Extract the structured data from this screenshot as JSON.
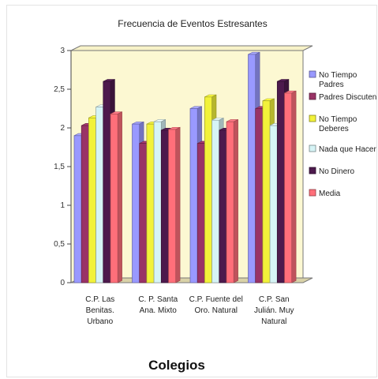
{
  "chart_data": {
    "type": "bar",
    "title": "Frecuencia de Eventos Estresantes",
    "xlabel": "Colegios",
    "ylabel": "",
    "ylim": [
      0,
      3
    ],
    "yticks": [
      "0",
      "0,5",
      "1",
      "1,5",
      "2",
      "2,5",
      "3"
    ],
    "legend_position": "right",
    "grid": false,
    "categories": [
      [
        "C.P. Las",
        "Benitas.",
        "Urbano"
      ],
      [
        "C. P. Santa",
        "Ana. Mixto"
      ],
      [
        "C.P. Fuente del",
        "Oro. Natural"
      ],
      [
        "C.P. San",
        "Julián. Muy",
        "Natural"
      ]
    ],
    "series": [
      {
        "name": "No Tiempo Padres",
        "legend_lines": [
          "No Tiempo",
          "Padres"
        ],
        "color": "#9999ff",
        "values": [
          1.9,
          2.05,
          2.25,
          2.95
        ]
      },
      {
        "name": "Padres Discuten",
        "legend_lines": [
          "Padres Discuten"
        ],
        "color": "#993366",
        "values": [
          2.03,
          1.8,
          1.8,
          2.25
        ]
      },
      {
        "name": "No Tiempo Deberes",
        "legend_lines": [
          "No Tiempo",
          "Deberes"
        ],
        "color": "#f2f23a",
        "values": [
          2.13,
          2.05,
          2.4,
          2.35
        ]
      },
      {
        "name": "Nada que Hacer",
        "legend_lines": [
          "Nada que Hacer"
        ],
        "color": "#d6f4f6",
        "values": [
          2.27,
          2.08,
          2.1,
          2.03
        ]
      },
      {
        "name": "No Dinero",
        "legend_lines": [
          "No Dinero"
        ],
        "color": "#4d1a4d",
        "values": [
          2.6,
          1.97,
          1.97,
          2.6
        ]
      },
      {
        "name": "Media",
        "legend_lines": [
          "Media"
        ],
        "color": "#ff6f7a",
        "values": [
          2.18,
          1.98,
          2.08,
          2.45
        ]
      }
    ]
  }
}
